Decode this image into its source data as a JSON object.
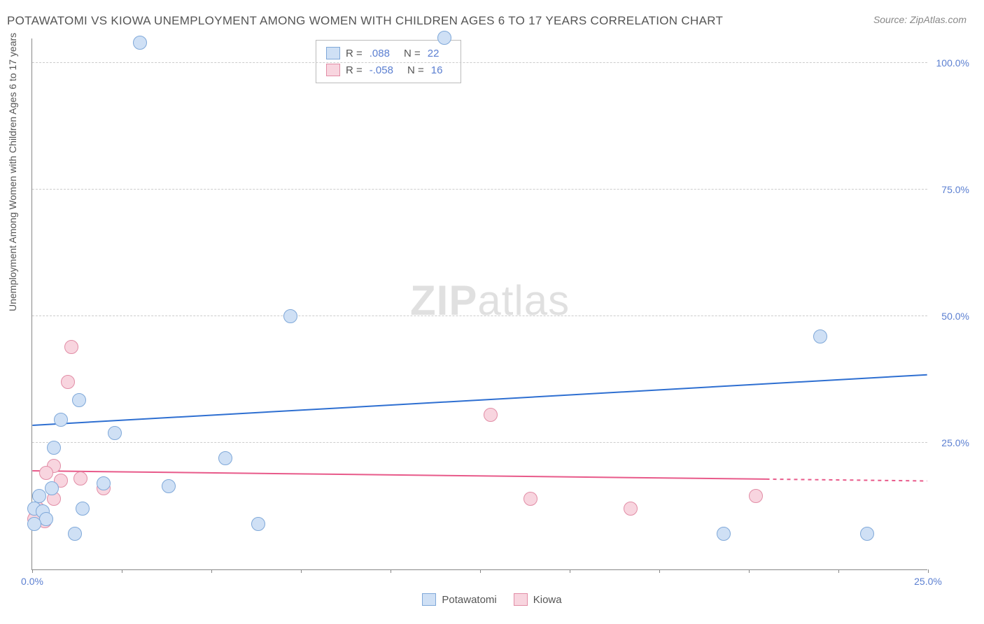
{
  "title": "POTAWATOMI VS KIOWA UNEMPLOYMENT AMONG WOMEN WITH CHILDREN AGES 6 TO 17 YEARS CORRELATION CHART",
  "source": "Source: ZipAtlas.com",
  "watermark": {
    "bold": "ZIP",
    "light": "atlas"
  },
  "y_axis_title": "Unemployment Among Women with Children Ages 6 to 17 years",
  "chart": {
    "type": "scatter",
    "xlim": [
      0,
      25
    ],
    "ylim": [
      0,
      105
    ],
    "y_ticks": [
      25,
      50,
      75,
      100
    ],
    "y_tick_labels": [
      "25.0%",
      "50.0%",
      "75.0%",
      "100.0%"
    ],
    "x_ticks": [
      0,
      2.5,
      5,
      7.5,
      10,
      12.5,
      15,
      17.5,
      20,
      22.5,
      25
    ],
    "x_tick_labels": {
      "0": "0.0%",
      "25": "25.0%"
    },
    "grid_color": "#cccccc",
    "axis_color": "#888888",
    "background_color": "#ffffff",
    "tick_label_color": "#5b7fd1",
    "marker_radius": 10,
    "marker_border_width": 1.5,
    "series": [
      {
        "name": "Potawatomi",
        "fill": "#cfe0f5",
        "stroke": "#7fa8d9",
        "r": 0.088,
        "n": 22,
        "trend": {
          "x1": 0,
          "y1": 28.5,
          "x2": 25,
          "y2": 38.5,
          "color": "#2e6fd1",
          "width": 2,
          "dash_from_x": null
        },
        "points": [
          {
            "x": 3.0,
            "y": 104
          },
          {
            "x": 11.5,
            "y": 105
          },
          {
            "x": 7.2,
            "y": 50
          },
          {
            "x": 22.0,
            "y": 46
          },
          {
            "x": 1.3,
            "y": 33.5
          },
          {
            "x": 0.8,
            "y": 29.5
          },
          {
            "x": 2.3,
            "y": 27
          },
          {
            "x": 0.6,
            "y": 24
          },
          {
            "x": 5.4,
            "y": 22
          },
          {
            "x": 2.0,
            "y": 17
          },
          {
            "x": 3.8,
            "y": 16.5
          },
          {
            "x": 0.55,
            "y": 16
          },
          {
            "x": 0.2,
            "y": 14.5
          },
          {
            "x": 0.05,
            "y": 12
          },
          {
            "x": 0.3,
            "y": 11.5
          },
          {
            "x": 1.4,
            "y": 12
          },
          {
            "x": 0.4,
            "y": 10
          },
          {
            "x": 0.05,
            "y": 9
          },
          {
            "x": 6.3,
            "y": 9
          },
          {
            "x": 1.2,
            "y": 7
          },
          {
            "x": 19.3,
            "y": 7
          },
          {
            "x": 23.3,
            "y": 7
          }
        ]
      },
      {
        "name": "Kiowa",
        "fill": "#f8d5df",
        "stroke": "#e28da6",
        "r": -0.058,
        "n": 16,
        "trend": {
          "x1": 0,
          "y1": 19.5,
          "x2": 25,
          "y2": 17.5,
          "color": "#e85a8a",
          "width": 2,
          "dash_from_x": 20.5
        },
        "points": [
          {
            "x": 1.1,
            "y": 44
          },
          {
            "x": 1.0,
            "y": 37
          },
          {
            "x": 12.8,
            "y": 30.5
          },
          {
            "x": 0.6,
            "y": 20.5
          },
          {
            "x": 0.4,
            "y": 19
          },
          {
            "x": 1.35,
            "y": 18
          },
          {
            "x": 0.8,
            "y": 17.5
          },
          {
            "x": 2.0,
            "y": 16
          },
          {
            "x": 0.6,
            "y": 14
          },
          {
            "x": 13.9,
            "y": 14
          },
          {
            "x": 20.2,
            "y": 14.5
          },
          {
            "x": 16.7,
            "y": 12
          },
          {
            "x": 0.15,
            "y": 12
          },
          {
            "x": 0.1,
            "y": 10.5
          },
          {
            "x": 0.35,
            "y": 9.5
          },
          {
            "x": 0.05,
            "y": 10
          }
        ]
      }
    ]
  },
  "stats_box": {
    "r_label": "R =",
    "n_label": "N ="
  },
  "footer_legend_labels": [
    "Potawatomi",
    "Kiowa"
  ]
}
